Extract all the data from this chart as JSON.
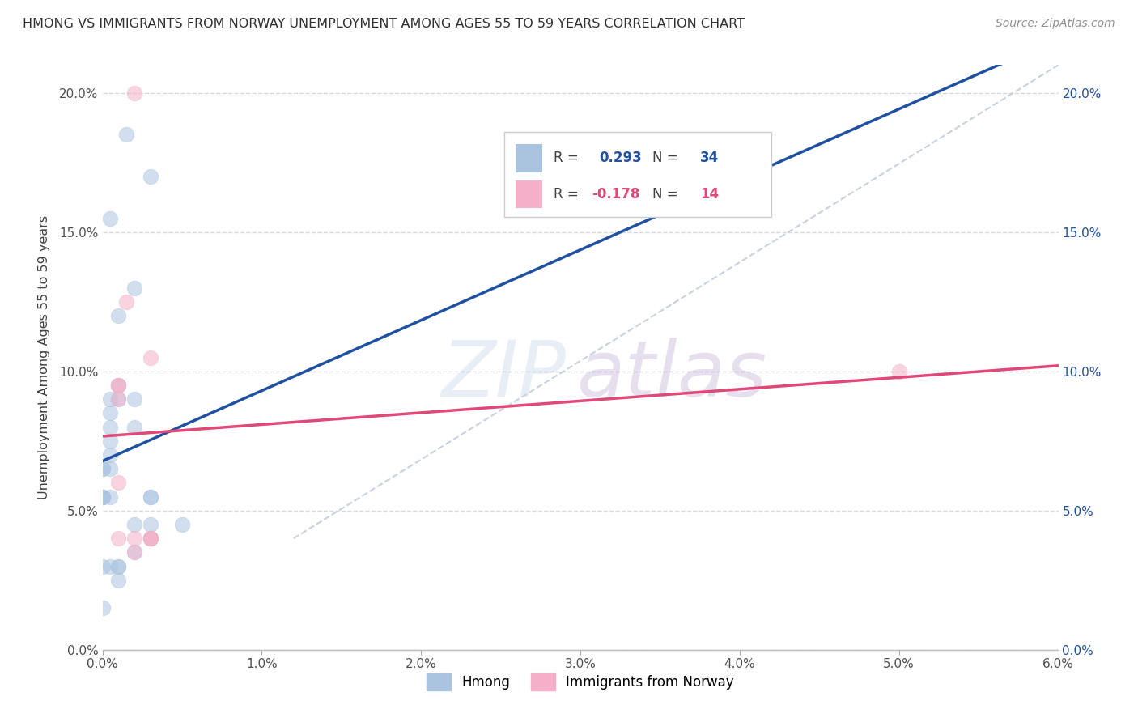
{
  "title": "HMONG VS IMMIGRANTS FROM NORWAY UNEMPLOYMENT AMONG AGES 55 TO 59 YEARS CORRELATION CHART",
  "source": "Source: ZipAtlas.com",
  "ylabel": "Unemployment Among Ages 55 to 59 years",
  "xmin": 0.0,
  "xmax": 0.06,
  "ymin": 0.0,
  "ymax": 0.21,
  "xticks": [
    0.0,
    0.01,
    0.02,
    0.03,
    0.04,
    0.05,
    0.06
  ],
  "yticks": [
    0.0,
    0.05,
    0.1,
    0.15,
    0.2
  ],
  "ytick_labels": [
    "0.0%",
    "5.0%",
    "10.0%",
    "15.0%",
    "20.0%"
  ],
  "xtick_labels": [
    "0.0%",
    "1.0%",
    "2.0%",
    "3.0%",
    "4.0%",
    "5.0%",
    "6.0%"
  ],
  "hmong_x": [
    0.0015,
    0.003,
    0.0005,
    0.002,
    0.001,
    0.001,
    0.001,
    0.0005,
    0.0005,
    0.0005,
    0.0005,
    0.0005,
    0.0,
    0.0,
    0.0,
    0.0,
    0.0,
    0.0005,
    0.0005,
    0.002,
    0.003,
    0.003,
    0.005,
    0.002,
    0.003,
    0.003,
    0.0,
    0.0005,
    0.001,
    0.002,
    0.002,
    0.001,
    0.001,
    0.0
  ],
  "hmong_y": [
    0.185,
    0.17,
    0.155,
    0.13,
    0.12,
    0.095,
    0.09,
    0.09,
    0.085,
    0.08,
    0.075,
    0.065,
    0.065,
    0.065,
    0.055,
    0.055,
    0.055,
    0.07,
    0.055,
    0.09,
    0.055,
    0.045,
    0.045,
    0.08,
    0.055,
    0.04,
    0.03,
    0.03,
    0.03,
    0.045,
    0.035,
    0.03,
    0.025,
    0.015
  ],
  "norway_x": [
    0.002,
    0.001,
    0.0015,
    0.001,
    0.001,
    0.001,
    0.003,
    0.003,
    0.003,
    0.05,
    0.001,
    0.003,
    0.002,
    0.002
  ],
  "norway_y": [
    0.2,
    0.095,
    0.125,
    0.09,
    0.095,
    0.06,
    0.105,
    0.04,
    0.04,
    0.1,
    0.04,
    0.04,
    0.04,
    0.035
  ],
  "hmong_color": "#aac4e0",
  "norway_color": "#f4b0c8",
  "hmong_line_color": "#2050a0",
  "norway_line_color": "#e04878",
  "dashed_line_color": "#b8c8d8",
  "background_color": "#ffffff",
  "grid_color": "#d4d4dc",
  "title_color": "#303030",
  "source_color": "#909090",
  "axis_label_color": "#404040",
  "marker_size": 180,
  "marker_alpha": 0.55
}
